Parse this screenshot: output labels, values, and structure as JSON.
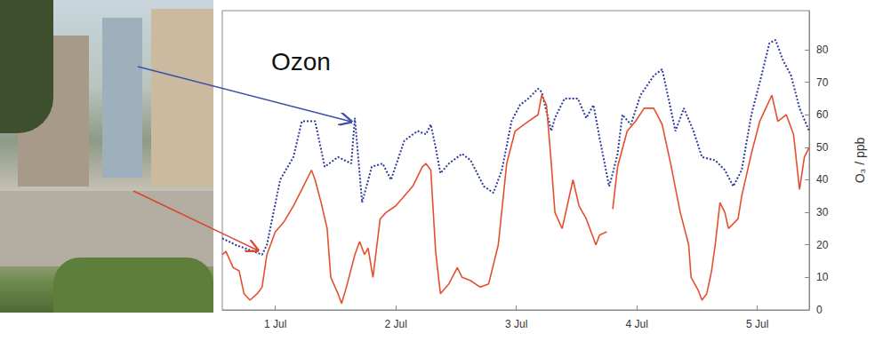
{
  "chart_data": {
    "type": "line",
    "title": "Ozon",
    "y_label": "O₃ / ppb",
    "xlim": [
      0.56,
      5.43
    ],
    "xticks": [
      {
        "value": 1,
        "label": "1 Jul"
      },
      {
        "value": 2,
        "label": "2 Jul"
      },
      {
        "value": 3,
        "label": "3 Jul"
      },
      {
        "value": 4,
        "label": "4 Jul"
      },
      {
        "value": 5,
        "label": "5 Jul"
      }
    ],
    "ylim": [
      0,
      92
    ],
    "yticks": [
      0,
      10,
      20,
      30,
      40,
      50,
      60,
      70,
      80
    ],
    "grid": false,
    "series": [
      {
        "color": "#2e3a9a",
        "line_style": "dotted",
        "marker": "none",
        "x": [
          0.56,
          0.67,
          0.82,
          0.89,
          0.93,
          1.04,
          1.15,
          1.22,
          1.33,
          1.41,
          1.52,
          1.63,
          1.66,
          1.72,
          1.8,
          1.89,
          1.96,
          2.07,
          2.18,
          2.25,
          2.29,
          2.33,
          2.37,
          2.44,
          2.55,
          2.62,
          2.73,
          2.81,
          2.88,
          2.96,
          3.03,
          3.1,
          3.18,
          3.21,
          3.29,
          3.32,
          3.4,
          3.51,
          3.58,
          3.64,
          3.69,
          3.77,
          3.8,
          3.84,
          3.88,
          3.95,
          4.03,
          4.14,
          4.21,
          4.28,
          4.32,
          4.39,
          4.47,
          4.54,
          4.65,
          4.73,
          4.8,
          4.87,
          4.95,
          5.02,
          5.1,
          5.15,
          5.21,
          5.28,
          5.35,
          5.43
        ],
        "values": [
          22,
          20,
          18,
          17,
          20,
          40,
          47,
          58,
          58,
          44,
          47,
          45,
          59,
          33,
          44,
          45,
          40,
          52,
          55,
          54,
          57,
          50,
          42,
          45,
          48,
          46,
          38,
          36,
          43,
          58,
          63,
          65,
          68,
          67,
          55,
          59,
          65,
          65,
          59,
          63,
          53,
          38,
          42,
          48,
          60,
          57,
          66,
          72,
          74,
          62,
          55,
          62,
          55,
          47,
          46,
          43,
          38,
          43,
          60,
          70,
          82,
          83,
          77,
          72,
          62,
          55
        ]
      },
      {
        "color": "#e4502e",
        "line_style": "solid",
        "marker": "none",
        "x": [
          0.56,
          0.59,
          0.65,
          0.7,
          0.74,
          0.79,
          0.85,
          0.89,
          0.93,
          1.0,
          1.07,
          1.15,
          1.22,
          1.3,
          1.33,
          1.38,
          1.43,
          1.46,
          1.52,
          1.55,
          1.59,
          1.66,
          1.7,
          1.74,
          1.77,
          1.81,
          1.87,
          1.92,
          2.0,
          2.07,
          2.14,
          2.22,
          2.25,
          2.29,
          2.33,
          2.37,
          2.44,
          2.51,
          2.55,
          2.62,
          2.7,
          2.77,
          2.85,
          2.92,
          2.99,
          3.1,
          3.18,
          3.21,
          3.25,
          3.29,
          3.32,
          3.38,
          3.44,
          3.47,
          3.52,
          3.58,
          3.66,
          3.69,
          3.75,
          3.77,
          3.8,
          3.84,
          3.92,
          3.99,
          4.06,
          4.14,
          4.21,
          4.28,
          4.36,
          4.43,
          4.45,
          4.51,
          4.54,
          4.58,
          4.62,
          4.65,
          4.69,
          4.73,
          4.76,
          4.84,
          4.87,
          4.95,
          5.02,
          5.07,
          5.12,
          5.17,
          5.24,
          5.3,
          5.35,
          5.39,
          5.43
        ],
        "values": [
          17,
          18,
          13,
          12,
          5,
          3,
          5,
          7,
          17,
          24,
          27,
          32,
          37,
          43,
          40,
          33,
          25,
          10,
          5,
          2,
          7,
          17,
          21,
          17,
          19,
          10,
          28,
          30,
          32,
          35,
          38,
          44,
          45,
          43,
          18,
          5,
          8,
          13,
          10,
          9,
          7,
          8,
          20,
          45,
          55,
          58,
          60,
          66,
          63,
          45,
          30,
          25,
          35,
          40,
          32,
          28,
          20,
          23,
          24,
          null,
          31,
          44,
          55,
          58,
          62,
          62,
          57,
          45,
          30,
          20,
          10,
          6,
          3,
          5,
          12,
          20,
          33,
          30,
          25,
          28,
          35,
          48,
          58,
          62,
          66,
          58,
          60,
          54,
          37,
          47,
          50
        ]
      }
    ]
  }
}
